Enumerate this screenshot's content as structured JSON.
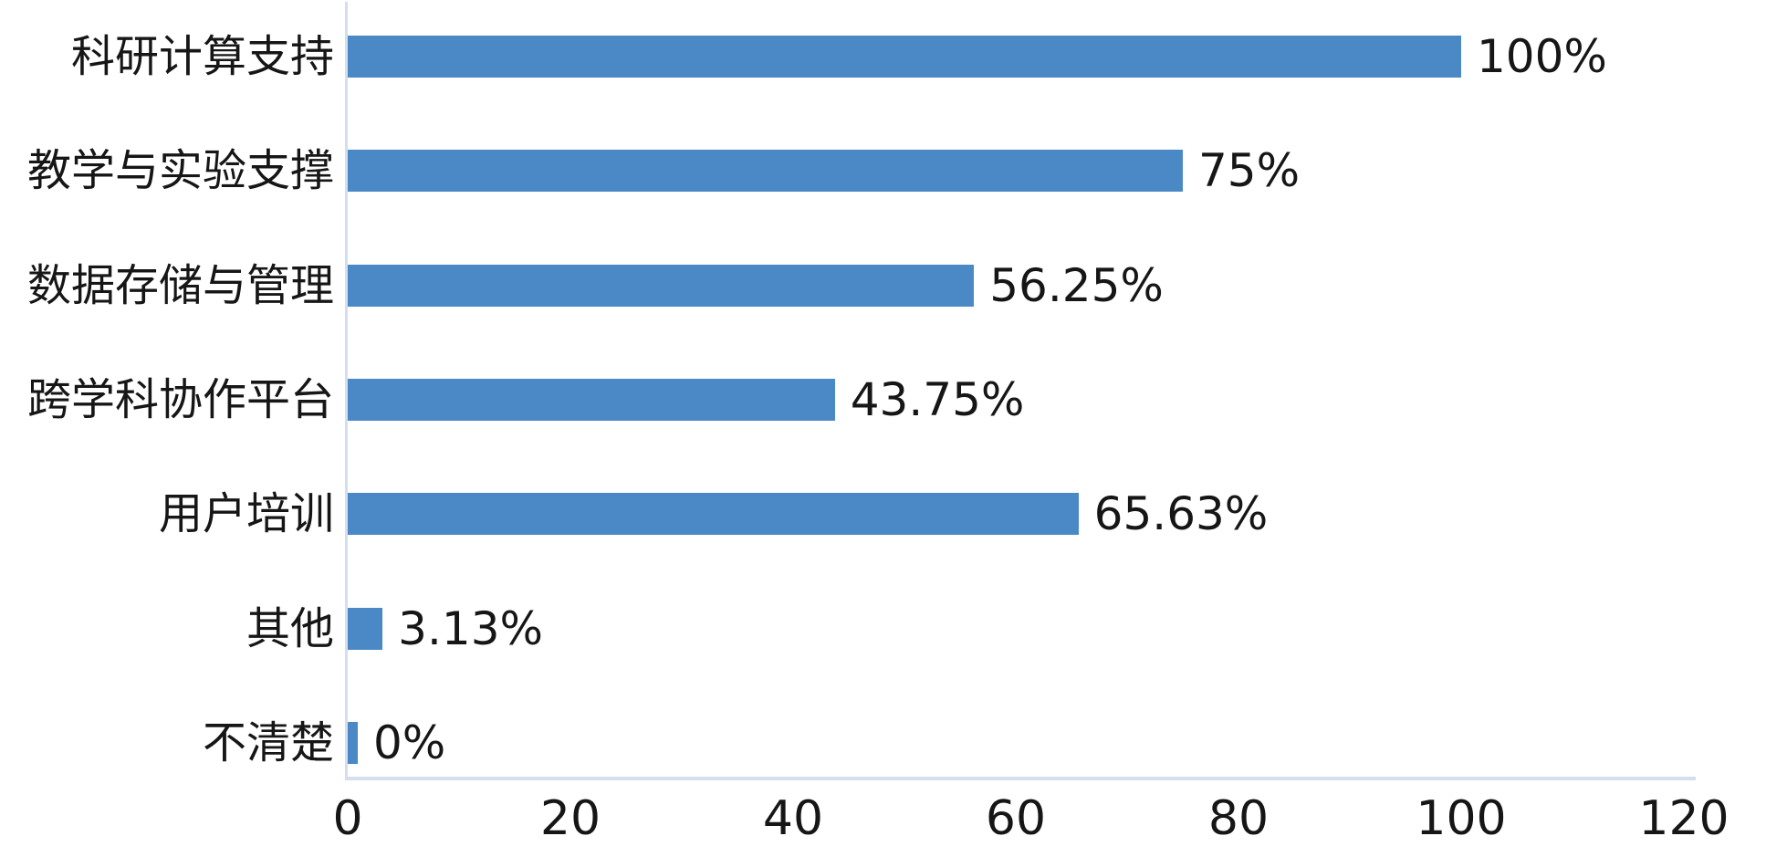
{
  "chart_data": {
    "type": "bar",
    "orientation": "horizontal",
    "categories": [
      "科研计算支持",
      "教学与实验支撑",
      "数据存储与管理",
      "跨学科协作平台",
      "用户培训",
      "其他",
      "不清楚"
    ],
    "values": [
      100,
      75,
      56.25,
      43.75,
      65.63,
      3.13,
      0
    ],
    "value_labels": [
      "100%",
      "75%",
      "56.25%",
      "43.75%",
      "65.63%",
      "3.13%",
      "0%"
    ],
    "x_ticks": [
      "0",
      "20",
      "40",
      "60",
      "80",
      "100",
      "120"
    ],
    "x_tick_values": [
      0,
      20,
      40,
      60,
      80,
      100,
      120
    ],
    "xlim": [
      0,
      120
    ],
    "grid": false,
    "legend": "none",
    "colors": {
      "bar": "#4A89C5",
      "axis_line": "#D3DEEE",
      "text": "#161616",
      "background": "#FFFFFF"
    }
  }
}
